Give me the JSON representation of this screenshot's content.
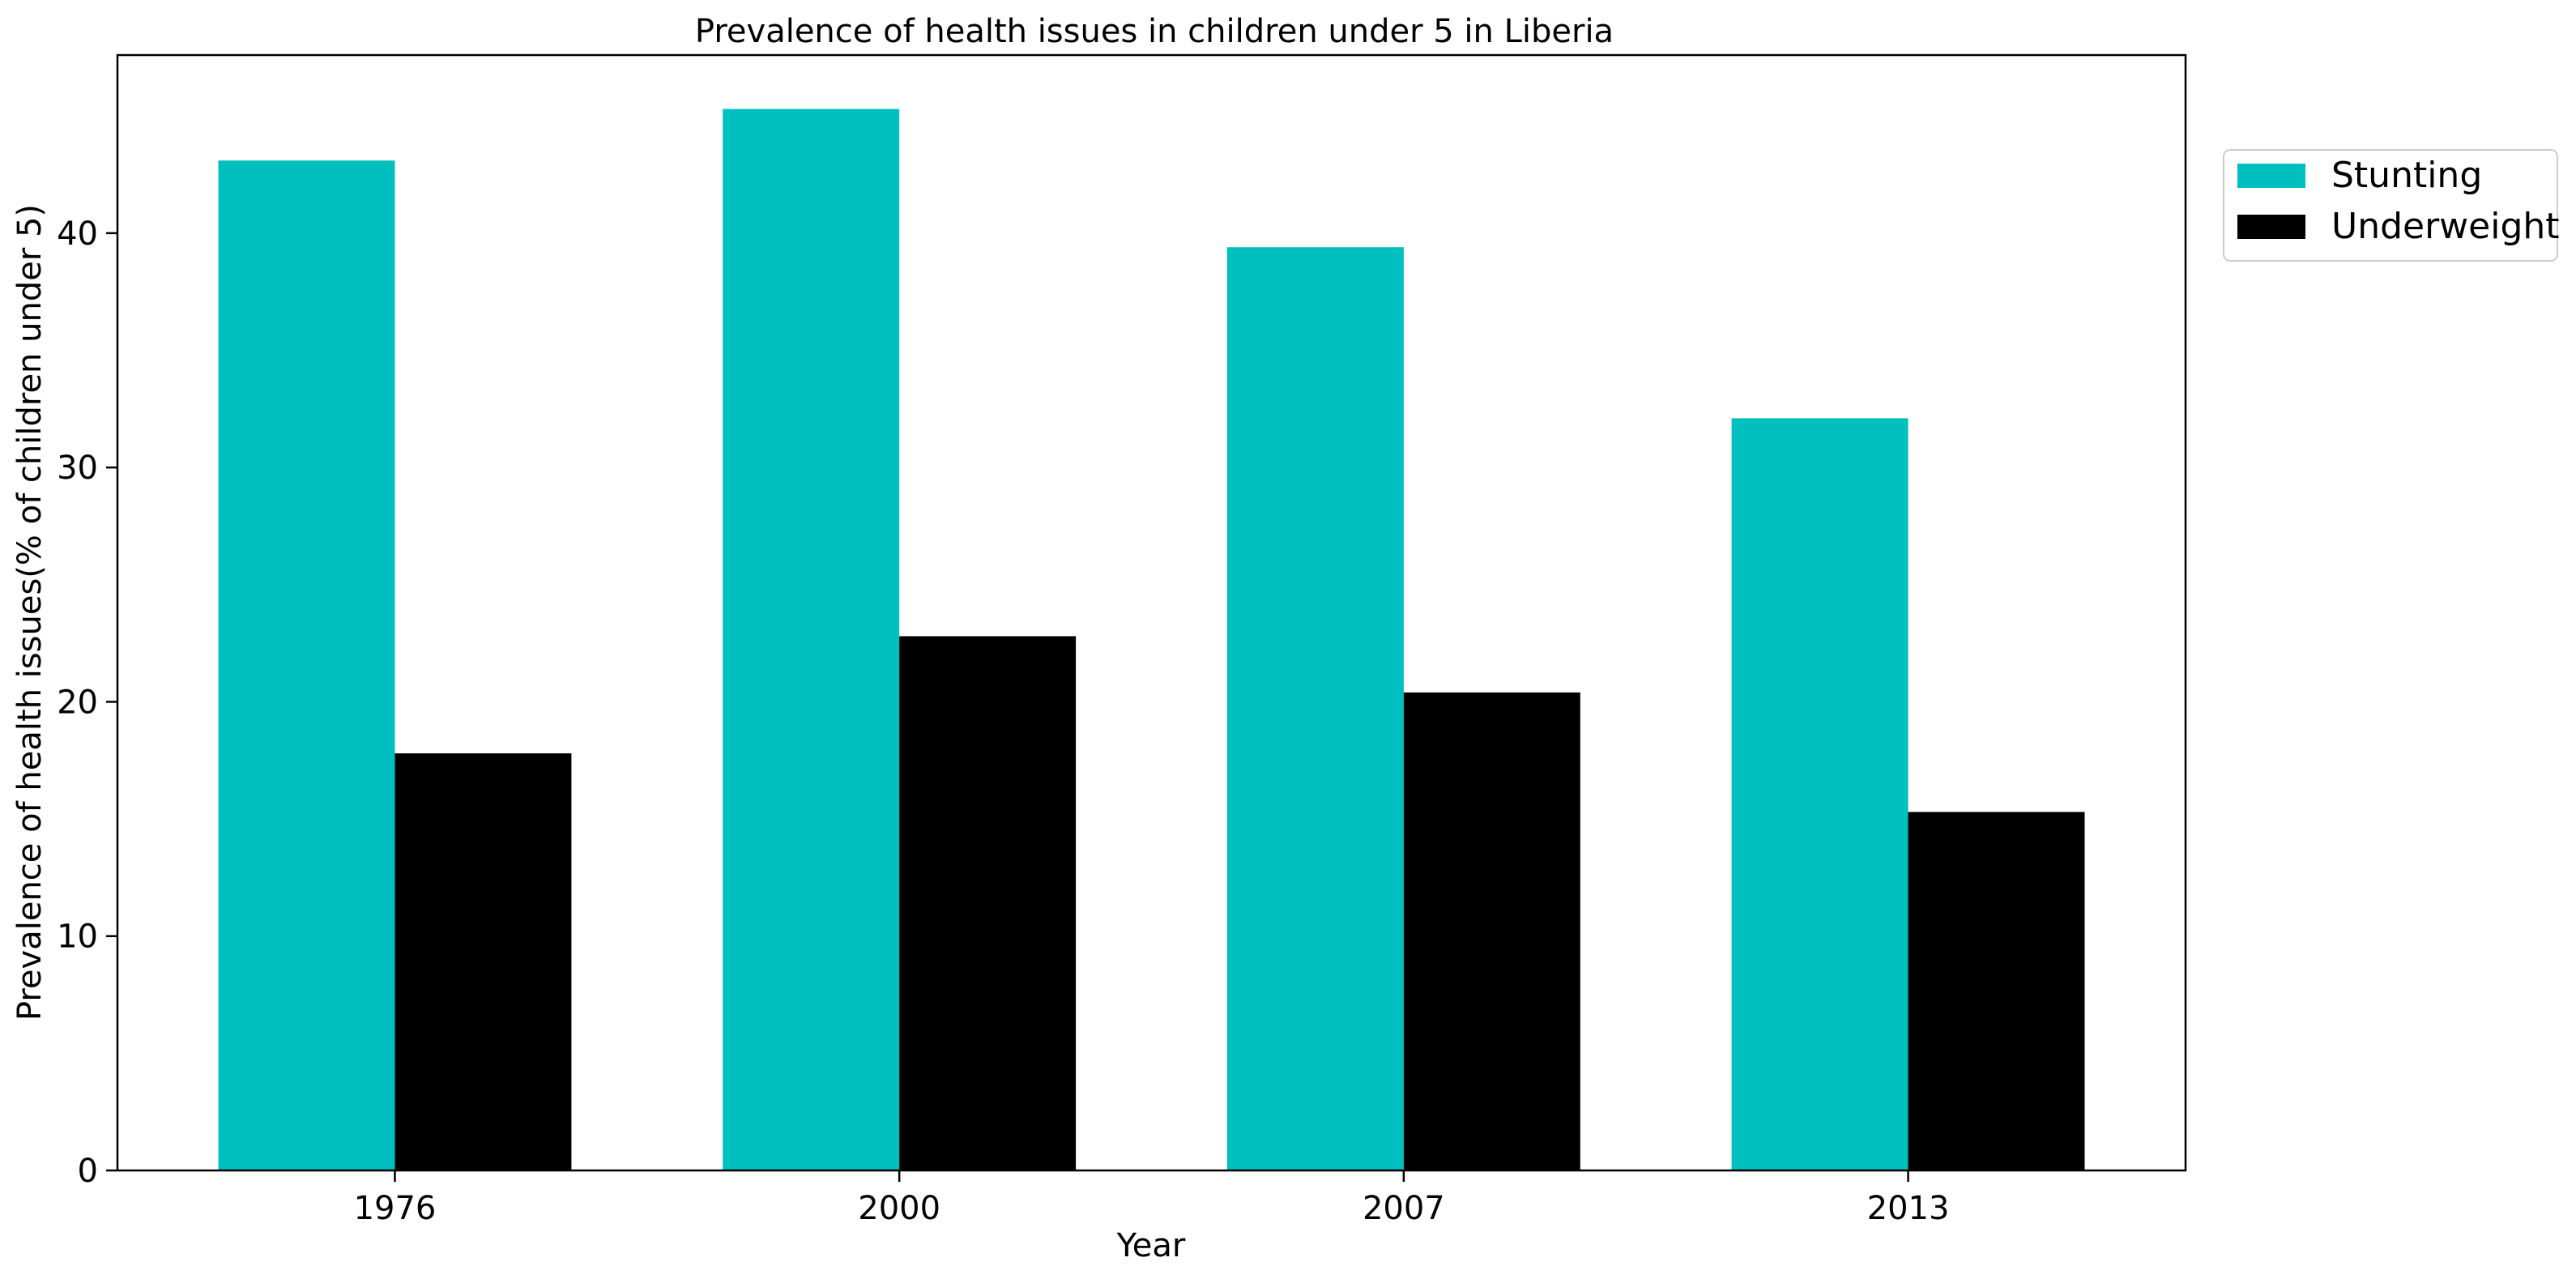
{
  "chart_data": {
    "type": "bar",
    "title": "Prevalence of health issues in children under 5 in Liberia",
    "xlabel": "Year",
    "ylabel": "Prevalence of health issues(% of children under 5)",
    "categories": [
      "1976",
      "2000",
      "2007",
      "2013"
    ],
    "series": [
      {
        "name": "Stunting",
        "color": "#00bfbf",
        "values": [
          43.1,
          45.3,
          39.4,
          32.1
        ]
      },
      {
        "name": "Underweight",
        "color": "#000000",
        "values": [
          17.8,
          22.8,
          20.4,
          15.3
        ]
      }
    ],
    "ylim": [
      0,
      47.6
    ],
    "yticks": [
      0,
      10,
      20,
      30,
      40
    ],
    "grid": false,
    "legend_position": "outside-top-right"
  }
}
